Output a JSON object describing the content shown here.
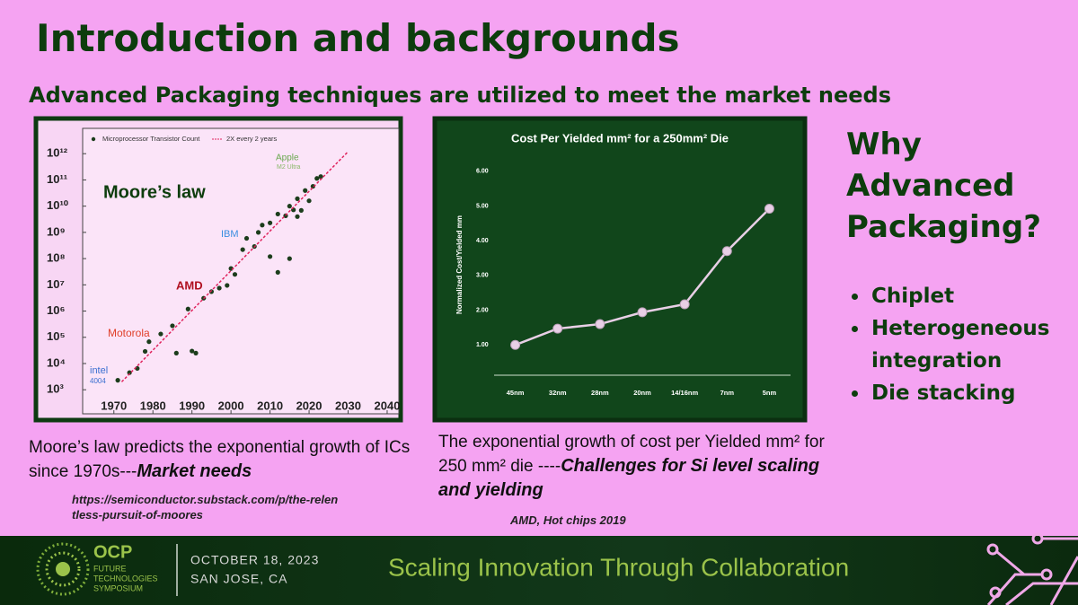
{
  "title": "Introduction and backgrounds",
  "subtitle": "Advanced Packaging techniques are utilized to meet the market needs",
  "chart_data": [
    {
      "type": "scatter",
      "series": [
        {
          "name": "Microprocessor Transistor Count",
          "color": "#1c3d1c",
          "x": [
            1971,
            1974,
            1976,
            1978,
            1979,
            1982,
            1985,
            1986,
            1989,
            1990,
            1991,
            1993,
            1995,
            1997,
            1999,
            2000,
            2001,
            2003,
            2004,
            2006,
            2007,
            2008,
            2010,
            2010,
            2012,
            2012,
            2014,
            2015,
            2015,
            2016,
            2017,
            2017,
            2018,
            2019,
            2020,
            2021,
            2022,
            2023
          ],
          "values": [
            2300,
            4500,
            6500,
            29000,
            68000,
            134000,
            275000,
            25000,
            1200000,
            30000,
            25000,
            3100000,
            5500000,
            7500000,
            9500000,
            42000000,
            25000000,
            220000000,
            592000000,
            291000000,
            1000000000,
            1900000000,
            2300000000,
            120000000,
            5000000000,
            30000000,
            4300000000,
            10000000000,
            100000000,
            7200000000,
            19200000000,
            4000000000,
            6900000000,
            39500000000,
            16000000000,
            57000000000,
            114000000000,
            134000000000
          ]
        },
        {
          "name": "2X every 2 years",
          "color": "#e0245e",
          "type": "line",
          "x": [
            1972,
            2030
          ],
          "values": [
            2000,
            1200000000000
          ]
        }
      ],
      "annotations": [
        "Moore’s law",
        "Apple",
        "M2 Ultra",
        "IBM",
        "AMD",
        "Motorola",
        "intel",
        "4004"
      ],
      "xlim": [
        1962,
        2043
      ],
      "xticks": [
        1970,
        1980,
        1990,
        2000,
        2010,
        2020,
        2030,
        2040
      ],
      "ylim": [
        500,
        10000000000000
      ],
      "yscale": "log",
      "yticks": [
        {
          "value": 1000,
          "label": "10³"
        },
        {
          "value": 10000,
          "label": "10⁴"
        },
        {
          "value": 100000,
          "label": "10⁵"
        },
        {
          "value": 1000000,
          "label": "10⁶"
        },
        {
          "value": 10000000,
          "label": "10⁷"
        },
        {
          "value": 100000000,
          "label": "10⁸"
        },
        {
          "value": 1000000000,
          "label": "10⁹"
        },
        {
          "value": 10000000000,
          "label": "10¹⁰"
        },
        {
          "value": 100000000000,
          "label": "10¹¹"
        },
        {
          "value": 1000000000000,
          "label": "10¹²"
        }
      ]
    },
    {
      "type": "line",
      "title": "Cost Per Yielded mm² for a 250mm² Die",
      "ylabel": "Normalized Cost/Yielded mm",
      "categories": [
        "45nm",
        "32nm",
        "28nm",
        "20nm",
        "14/16nm",
        "7nm",
        "5nm"
      ],
      "values": [
        1.0,
        1.47,
        1.6,
        1.94,
        2.17,
        3.7,
        4.92
      ],
      "color": "#e8cfe6",
      "ylim": [
        0,
        7
      ],
      "yticks": [
        {
          "value": 1,
          "label": "1.00"
        },
        {
          "value": 2,
          "label": "2.00"
        },
        {
          "value": 3,
          "label": "3.00"
        },
        {
          "value": 4,
          "label": "4.00"
        },
        {
          "value": 5,
          "label": "5.00"
        },
        {
          "value": 6,
          "label": "6.00"
        }
      ]
    }
  ],
  "captions": {
    "left": [
      "Moore’s law predicts the exponential growth of ICs since 1970s---",
      "Market needs"
    ],
    "left_source": "https://semiconductor.substack.com/p/the-relentless-pursuit-of-moores",
    "right": [
      "The exponential growth of cost per Yielded mm² for 250 mm² die ----",
      "Challenges for Si level scaling and yielding"
    ],
    "right_source": "AMD, Hot chips 2019"
  },
  "sidebar": {
    "heading": "Why Advanced Packaging?",
    "bullets": [
      "Chiplet",
      "Heterogeneous integration",
      "Die stacking"
    ]
  },
  "footer": {
    "logo": "OCP",
    "org": [
      "FUTURE",
      "TECHNOLOGIES",
      "SYMPOSIUM"
    ],
    "date": "OCTOBER 18, 2023",
    "place": "SAN JOSE, CA",
    "tagline": "Scaling Innovation Through Collaboration"
  }
}
